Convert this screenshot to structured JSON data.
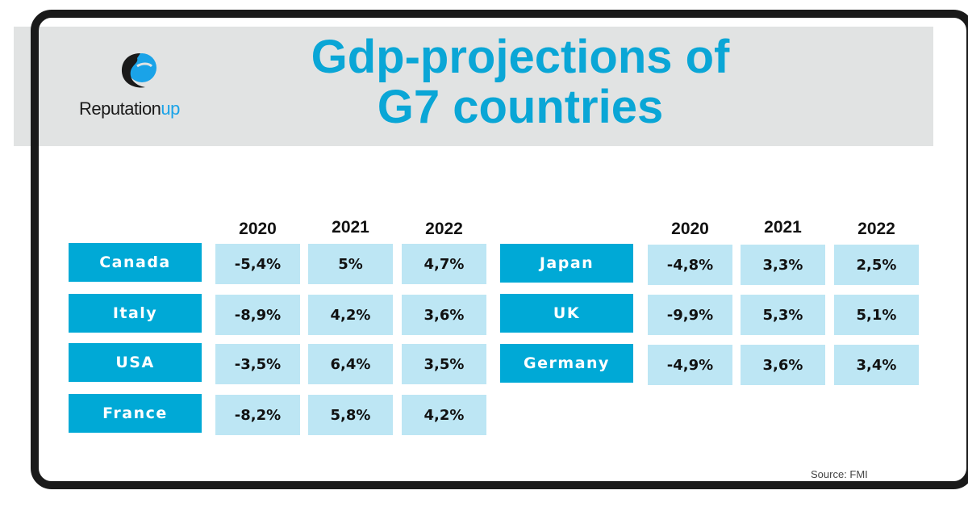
{
  "title_line1": "Gdp-projections of",
  "title_line2": "G7 countries",
  "logo": {
    "text_main": "Reputation",
    "text_accent": "up",
    "colors": {
      "dark": "#1a1a1a",
      "blue": "#1aa3e8"
    }
  },
  "source": "Source: FMI",
  "colors": {
    "title": "#0aa6d6",
    "country_box": "#00a9d6",
    "value_cell": "#bde6f4",
    "header_band": "#e1e3e3"
  },
  "chart_data": {
    "type": "table",
    "title": "Gdp-projections of G7 countries",
    "columns": [
      "2020",
      "2021",
      "2022"
    ],
    "tables": [
      {
        "rows": [
          {
            "country": "Canada",
            "values": [
              "-5,4%",
              "5%",
              "4,7%"
            ]
          },
          {
            "country": "Italy",
            "values": [
              "-8,9%",
              "4,2%",
              "3,6%"
            ]
          },
          {
            "country": "USA",
            "values": [
              "-3,5%",
              "6,4%",
              "3,5%"
            ]
          },
          {
            "country": "France",
            "values": [
              "-8,2%",
              "5,8%",
              "4,2%"
            ]
          }
        ]
      },
      {
        "rows": [
          {
            "country": "Japan",
            "values": [
              "-4,8%",
              "3,3%",
              "2,5%"
            ]
          },
          {
            "country": "UK",
            "values": [
              "-9,9%",
              "5,3%",
              "5,1%"
            ]
          },
          {
            "country": "Germany",
            "values": [
              "-4,9%",
              "3,6%",
              "3,4%"
            ]
          }
        ]
      }
    ],
    "source": "Source: FMI"
  }
}
